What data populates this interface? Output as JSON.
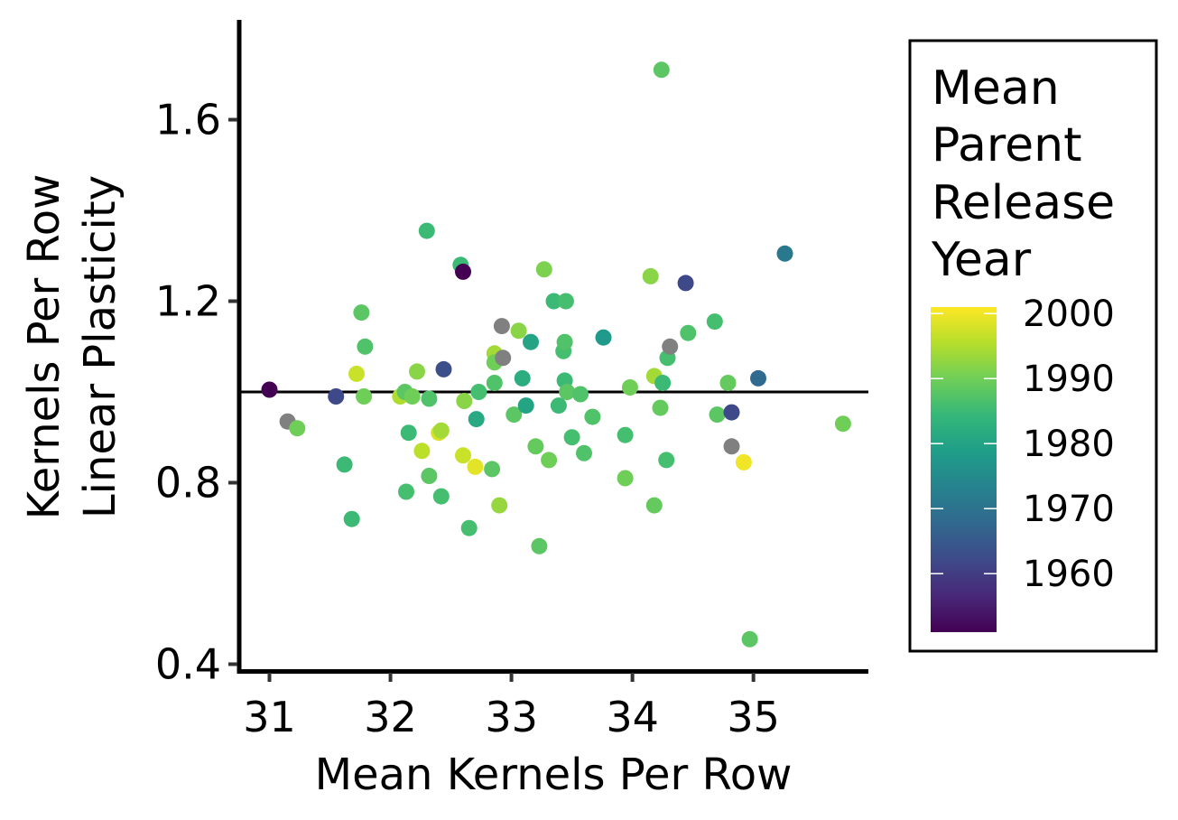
{
  "chart_data": {
    "type": "scatter",
    "xlabel": "Mean Kernels Per Row",
    "ylabel_lines": [
      "Kernels Per Row",
      "Linear Plasticity"
    ],
    "xlim": [
      30.75,
      35.95
    ],
    "ylim": [
      0.385,
      1.82
    ],
    "x_ticks": [
      31,
      32,
      33,
      34,
      35
    ],
    "y_ticks": [
      0.4,
      0.8,
      1.2,
      1.6
    ],
    "y_tick_labels": [
      "0.4",
      "0.8",
      "1.2",
      "1.6"
    ],
    "grid": false,
    "reference_line": {
      "y": 1.0,
      "color": "#000000"
    },
    "legend": {
      "position": "right",
      "title_lines": [
        "Mean",
        "Parent",
        "Release",
        "Year"
      ],
      "colorbar_range": [
        1951,
        2001
      ],
      "ticks": [
        2000,
        1990,
        1980,
        1970,
        1960
      ],
      "palette": [
        "#440154",
        "#482878",
        "#3e4a89",
        "#31688e",
        "#26828e",
        "#1f9e89",
        "#35b779",
        "#6ece58",
        "#b5de2b",
        "#fde725"
      ]
    },
    "missing_color": "#808080",
    "points": [
      {
        "x": 31.0,
        "y": 1.005,
        "year": 1951
      },
      {
        "x": 31.15,
        "y": 0.935,
        "year": null
      },
      {
        "x": 31.23,
        "y": 0.92,
        "year": 1990
      },
      {
        "x": 31.55,
        "y": 0.99,
        "year": 1962
      },
      {
        "x": 31.62,
        "y": 0.84,
        "year": 1985
      },
      {
        "x": 31.68,
        "y": 0.72,
        "year": 1985
      },
      {
        "x": 31.72,
        "y": 1.04,
        "year": 1997
      },
      {
        "x": 31.76,
        "y": 1.175,
        "year": 1988
      },
      {
        "x": 31.78,
        "y": 0.99,
        "year": 1990
      },
      {
        "x": 31.79,
        "y": 1.1,
        "year": 1987
      },
      {
        "x": 32.08,
        "y": 0.99,
        "year": 1995
      },
      {
        "x": 32.12,
        "y": 1.0,
        "year": 1988
      },
      {
        "x": 32.13,
        "y": 0.78,
        "year": 1986
      },
      {
        "x": 32.15,
        "y": 0.91,
        "year": 1985
      },
      {
        "x": 32.18,
        "y": 0.99,
        "year": 1990
      },
      {
        "x": 32.22,
        "y": 1.045,
        "year": 1992
      },
      {
        "x": 32.26,
        "y": 0.87,
        "year": 1996
      },
      {
        "x": 32.3,
        "y": 1.355,
        "year": 1985
      },
      {
        "x": 32.32,
        "y": 0.985,
        "year": 1987
      },
      {
        "x": 32.32,
        "y": 0.815,
        "year": 1988
      },
      {
        "x": 32.4,
        "y": 0.91,
        "year": 1998
      },
      {
        "x": 32.42,
        "y": 0.915,
        "year": 1994
      },
      {
        "x": 32.42,
        "y": 0.77,
        "year": 1986
      },
      {
        "x": 32.44,
        "y": 1.05,
        "year": 1963
      },
      {
        "x": 32.58,
        "y": 1.28,
        "year": 1985
      },
      {
        "x": 32.6,
        "y": 1.265,
        "year": 1951
      },
      {
        "x": 32.6,
        "y": 0.86,
        "year": 1997
      },
      {
        "x": 32.61,
        "y": 0.98,
        "year": 1992
      },
      {
        "x": 32.65,
        "y": 0.7,
        "year": 1986
      },
      {
        "x": 32.7,
        "y": 0.835,
        "year": 1999
      },
      {
        "x": 32.71,
        "y": 0.94,
        "year": 1981
      },
      {
        "x": 32.73,
        "y": 1.0,
        "year": 1986
      },
      {
        "x": 32.84,
        "y": 0.83,
        "year": 1988
      },
      {
        "x": 32.86,
        "y": 1.085,
        "year": 1994
      },
      {
        "x": 32.86,
        "y": 1.065,
        "year": 1990
      },
      {
        "x": 32.86,
        "y": 1.02,
        "year": 1987
      },
      {
        "x": 32.9,
        "y": 0.75,
        "year": 1993
      },
      {
        "x": 32.92,
        "y": 1.145,
        "year": null
      },
      {
        "x": 32.93,
        "y": 1.075,
        "year": null
      },
      {
        "x": 33.02,
        "y": 0.95,
        "year": 1988
      },
      {
        "x": 33.06,
        "y": 1.135,
        "year": 1992
      },
      {
        "x": 33.09,
        "y": 1.03,
        "year": 1982
      },
      {
        "x": 33.12,
        "y": 0.97,
        "year": 1980
      },
      {
        "x": 33.16,
        "y": 1.11,
        "year": 1980
      },
      {
        "x": 33.2,
        "y": 0.88,
        "year": 1989
      },
      {
        "x": 33.23,
        "y": 0.66,
        "year": 1988
      },
      {
        "x": 33.27,
        "y": 1.27,
        "year": 1991
      },
      {
        "x": 33.31,
        "y": 0.85,
        "year": 1990
      },
      {
        "x": 33.35,
        "y": 1.2,
        "year": 1985
      },
      {
        "x": 33.39,
        "y": 0.97,
        "year": 1985
      },
      {
        "x": 33.43,
        "y": 1.09,
        "year": 1986
      },
      {
        "x": 33.44,
        "y": 1.11,
        "year": 1987
      },
      {
        "x": 33.44,
        "y": 1.025,
        "year": 1985
      },
      {
        "x": 33.45,
        "y": 1.2,
        "year": 1986
      },
      {
        "x": 33.46,
        "y": 1.0,
        "year": 1988
      },
      {
        "x": 33.5,
        "y": 0.9,
        "year": 1986
      },
      {
        "x": 33.57,
        "y": 0.995,
        "year": 1987
      },
      {
        "x": 33.6,
        "y": 0.865,
        "year": 1987
      },
      {
        "x": 33.67,
        "y": 0.945,
        "year": 1987
      },
      {
        "x": 33.76,
        "y": 1.12,
        "year": 1978
      },
      {
        "x": 33.94,
        "y": 0.905,
        "year": 1986
      },
      {
        "x": 33.94,
        "y": 0.81,
        "year": 1990
      },
      {
        "x": 33.98,
        "y": 1.01,
        "year": 1990
      },
      {
        "x": 34.15,
        "y": 1.255,
        "year": 1992
      },
      {
        "x": 34.18,
        "y": 1.035,
        "year": 1994
      },
      {
        "x": 34.18,
        "y": 0.75,
        "year": 1989
      },
      {
        "x": 34.23,
        "y": 0.965,
        "year": 1989
      },
      {
        "x": 34.24,
        "y": 1.71,
        "year": 1988
      },
      {
        "x": 34.25,
        "y": 1.02,
        "year": 1985
      },
      {
        "x": 34.28,
        "y": 0.85,
        "year": 1986
      },
      {
        "x": 34.29,
        "y": 1.075,
        "year": 1986
      },
      {
        "x": 34.31,
        "y": 1.1,
        "year": null
      },
      {
        "x": 34.44,
        "y": 1.24,
        "year": 1962
      },
      {
        "x": 34.46,
        "y": 1.13,
        "year": 1987
      },
      {
        "x": 34.68,
        "y": 1.155,
        "year": 1986
      },
      {
        "x": 34.7,
        "y": 0.95,
        "year": 1988
      },
      {
        "x": 34.79,
        "y": 1.02,
        "year": 1989
      },
      {
        "x": 34.82,
        "y": 0.955,
        "year": 1962
      },
      {
        "x": 34.82,
        "y": 0.88,
        "year": null
      },
      {
        "x": 34.92,
        "y": 0.845,
        "year": 2000
      },
      {
        "x": 34.97,
        "y": 0.455,
        "year": 1988
      },
      {
        "x": 35.04,
        "y": 1.03,
        "year": 1968
      },
      {
        "x": 35.26,
        "y": 1.305,
        "year": 1971
      },
      {
        "x": 35.74,
        "y": 0.93,
        "year": 1990
      }
    ]
  }
}
